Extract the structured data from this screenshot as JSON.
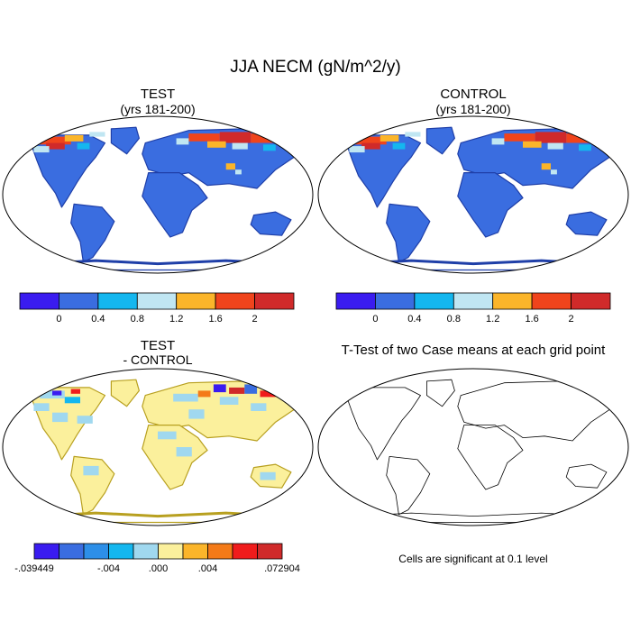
{
  "title": "JJA NECM (gN/m^2/y)",
  "chart_data": [
    {
      "type": "map",
      "id": "test",
      "title": "TEST",
      "subtitle": "(yrs 181-200)",
      "colorbar": {
        "tick_labels": [
          "0",
          "0.4",
          "0.8",
          "1.2",
          "1.6",
          "2"
        ],
        "colors": [
          "#3a1cf0",
          "#3a6de0",
          "#14b7ef",
          "#c0e6f2",
          "#fbb52a",
          "#f0441c",
          "#d02a2a"
        ]
      },
      "dominant_value_range": [
        0,
        0.4
      ],
      "high_value_regions": [
        "northern North America",
        "northern Eurasia"
      ]
    },
    {
      "type": "map",
      "id": "control",
      "title": "CONTROL",
      "subtitle": "(yrs 181-200)",
      "colorbar": {
        "tick_labels": [
          "0",
          "0.4",
          "0.8",
          "1.2",
          "1.6",
          "2"
        ],
        "colors": [
          "#3a1cf0",
          "#3a6de0",
          "#14b7ef",
          "#c0e6f2",
          "#fbb52a",
          "#f0441c",
          "#d02a2a"
        ]
      },
      "dominant_value_range": [
        0,
        0.4
      ],
      "high_value_regions": [
        "northern North America",
        "northern Eurasia"
      ]
    },
    {
      "type": "map",
      "id": "diff",
      "title": "TEST",
      "subtitle": "- CONTROL",
      "colorbar": {
        "tick_labels": [
          "-.039449",
          "-.004",
          ".000",
          ".004",
          ".072904"
        ],
        "colors": [
          "#3a1cf0",
          "#3a6de0",
          "#2d8fe8",
          "#14b7ef",
          "#a0d8ef",
          "#fbf09c",
          "#fbb52a",
          "#f47a18",
          "#f01c1c",
          "#d02a2a"
        ]
      },
      "dominant_value_range": [
        -0.004,
        0.004
      ]
    },
    {
      "type": "map",
      "id": "ttest",
      "title": "T-Test of two Case means at each grid point",
      "note": "Cells are significant at 0.1 level"
    }
  ]
}
